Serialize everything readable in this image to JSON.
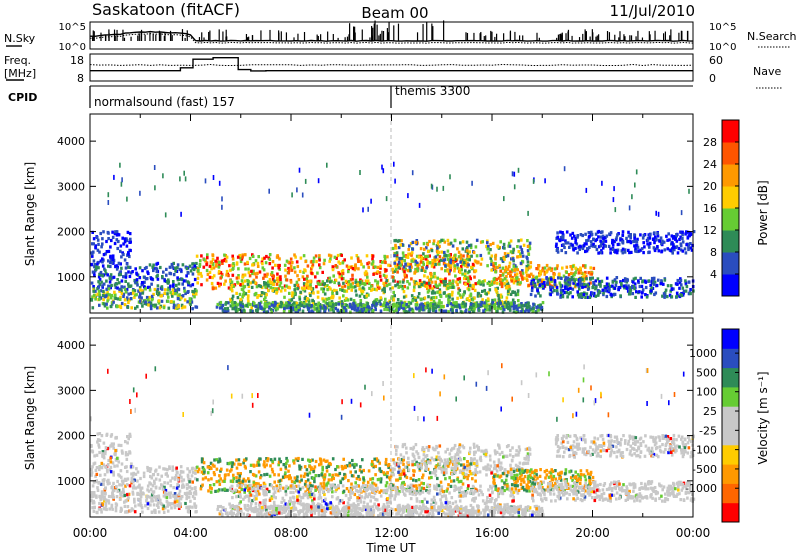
{
  "header": {
    "site": "Saskatoon (fitACF)",
    "beam": "Beam 00",
    "date": "11/Jul/2010"
  },
  "noise_panel": {
    "left_label": "N.Sky",
    "left_ticks": [
      "10^5",
      "10^0"
    ],
    "right_label": "N.Search",
    "right_ticks": [
      "10^5",
      "10^0"
    ]
  },
  "freq_panel": {
    "left_label_line1": "Freq.",
    "left_label_line2": "[MHz]",
    "left_ticks": [
      "18",
      "8"
    ],
    "right_label": "Nave",
    "right_ticks": [
      "60",
      "0"
    ]
  },
  "cpid_panel": {
    "label": "CPID",
    "segments": [
      {
        "label": "normalsound (fast) 157",
        "start_hour": 0
      },
      {
        "label": "themis 3300",
        "start_hour": 12
      }
    ]
  },
  "colors": {
    "power_scale": [
      "#0000ff",
      "#2a4dbf",
      "#2e8b57",
      "#66cc33",
      "#ffcc00",
      "#ff9900",
      "#ff5500",
      "#ff0000"
    ],
    "velocity_scale": [
      "#ff0000",
      "#ff6600",
      "#ff9900",
      "#ffcc00",
      "#c8c8c8",
      "#c8c8c8",
      "#66cc33",
      "#2e8b57",
      "#2a4dbf",
      "#0000ff"
    ]
  },
  "chart_data": [
    {
      "type": "heatmap",
      "panel": "power",
      "ylabel": "Slant Range [km]",
      "yticks": [
        "1000",
        "2000",
        "3000",
        "4000"
      ],
      "ylim": [
        200,
        4600
      ],
      "xlim": [
        0,
        24
      ],
      "colorbar_label": "Power [dB]",
      "colorbar_ticks": [
        "28",
        "24",
        "20",
        "16",
        "12",
        "8",
        "4"
      ],
      "colorbar_range": [
        0,
        32
      ]
    },
    {
      "type": "heatmap",
      "panel": "velocity",
      "ylabel": "Slant Range [km]",
      "yticks": [
        "1000",
        "2000",
        "3000",
        "4000"
      ],
      "ylim": [
        200,
        4600
      ],
      "xlim": [
        0,
        24
      ],
      "colorbar_label": "Velocity [m s⁻¹]",
      "colorbar_ticks": [
        "1000",
        "500",
        "100",
        "25",
        "-25",
        "-100",
        "-500",
        "-1000"
      ]
    }
  ],
  "x_axis": {
    "ticks": [
      "00:00",
      "04:00",
      "08:00",
      "12:00",
      "16:00",
      "20:00",
      "00:00"
    ],
    "label": "Time UT"
  }
}
